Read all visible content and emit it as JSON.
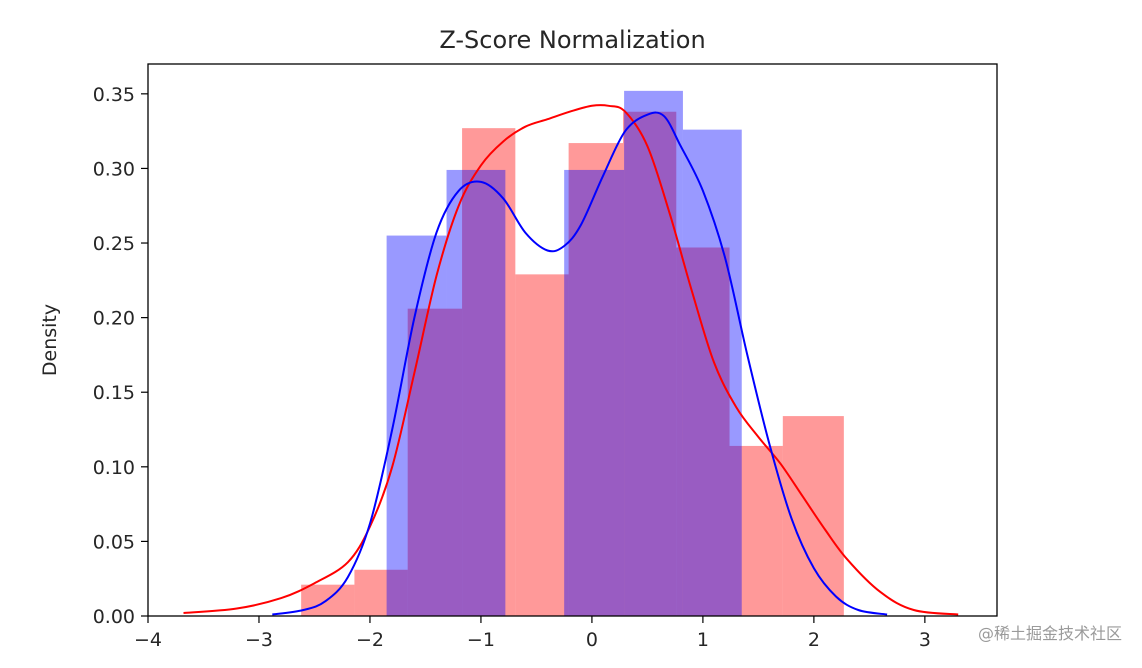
{
  "chart_data": {
    "type": "histogram",
    "title": "Z-Score Normalization",
    "xlabel": "",
    "ylabel": "Density",
    "xlim": [
      -4.0,
      3.65
    ],
    "ylim": [
      0,
      0.37
    ],
    "xticks": [
      -4,
      -3,
      -2,
      -1,
      0,
      1,
      2,
      3
    ],
    "yticks": [
      "0.00",
      "0.05",
      "0.10",
      "0.15",
      "0.20",
      "0.25",
      "0.30",
      "0.35"
    ],
    "grid": false,
    "series": [
      {
        "color": "#ff0000",
        "histogram": {
          "bins": [
            {
              "x0": -2.62,
              "x1": -2.14,
              "density": 0.021
            },
            {
              "x0": -2.14,
              "x1": -1.66,
              "density": 0.031
            },
            {
              "x0": -1.66,
              "x1": -1.17,
              "density": 0.206
            },
            {
              "x0": -1.17,
              "x1": -0.69,
              "density": 0.327
            },
            {
              "x0": -0.69,
              "x1": -0.21,
              "density": 0.229
            },
            {
              "x0": -0.21,
              "x1": 0.28,
              "density": 0.317
            },
            {
              "x0": 0.28,
              "x1": 0.76,
              "density": 0.338
            },
            {
              "x0": 0.76,
              "x1": 1.24,
              "density": 0.247
            },
            {
              "x0": 1.24,
              "x1": 1.72,
              "density": 0.114
            },
            {
              "x0": 1.72,
              "x1": 2.27,
              "density": 0.134
            }
          ]
        },
        "kde": {
          "x": [
            -3.68,
            -3.2,
            -2.8,
            -2.5,
            -2.2,
            -2.0,
            -1.8,
            -1.6,
            -1.4,
            -1.2,
            -1.0,
            -0.8,
            -0.6,
            -0.4,
            -0.2,
            0.0,
            0.15,
            0.3,
            0.5,
            0.7,
            0.9,
            1.1,
            1.3,
            1.5,
            1.7,
            1.9,
            2.1,
            2.3,
            2.6,
            2.9,
            3.3
          ],
          "y": [
            0.002,
            0.005,
            0.012,
            0.022,
            0.036,
            0.06,
            0.1,
            0.163,
            0.228,
            0.275,
            0.302,
            0.318,
            0.328,
            0.333,
            0.338,
            0.342,
            0.342,
            0.338,
            0.315,
            0.27,
            0.218,
            0.17,
            0.14,
            0.12,
            0.102,
            0.08,
            0.058,
            0.038,
            0.016,
            0.004,
            0.001
          ]
        }
      },
      {
        "color": "#0000ff",
        "histogram": {
          "bins": [
            {
              "x0": -2.38,
              "x1": -1.85,
              "density": 0.0
            },
            {
              "x0": -1.85,
              "x1": -1.31,
              "density": 0.255
            },
            {
              "x0": -1.31,
              "x1": -0.78,
              "density": 0.299
            },
            {
              "x0": -0.78,
              "x1": -0.25,
              "density": 0.0
            },
            {
              "x0": -0.25,
              "x1": 0.29,
              "density": 0.299
            },
            {
              "x0": 0.29,
              "x1": 0.82,
              "density": 0.352
            },
            {
              "x0": 0.82,
              "x1": 1.35,
              "density": 0.326
            },
            {
              "x0": 1.35,
              "x1": 1.89,
              "density": 0.0
            }
          ]
        },
        "kde": {
          "x": [
            -2.88,
            -2.6,
            -2.4,
            -2.2,
            -2.0,
            -1.8,
            -1.6,
            -1.4,
            -1.2,
            -1.0,
            -0.8,
            -0.6,
            -0.4,
            -0.25,
            -0.1,
            0.1,
            0.3,
            0.5,
            0.65,
            0.8,
            1.0,
            1.2,
            1.4,
            1.6,
            1.8,
            2.0,
            2.2,
            2.4,
            2.66
          ],
          "y": [
            0.001,
            0.004,
            0.01,
            0.026,
            0.062,
            0.125,
            0.2,
            0.257,
            0.285,
            0.291,
            0.28,
            0.257,
            0.245,
            0.248,
            0.262,
            0.295,
            0.325,
            0.336,
            0.335,
            0.315,
            0.285,
            0.24,
            0.175,
            0.115,
            0.065,
            0.032,
            0.013,
            0.004,
            0.001
          ]
        }
      }
    ],
    "overlap_color": "#9c5bb0"
  },
  "watermark": "@稀土掘金技术社区"
}
